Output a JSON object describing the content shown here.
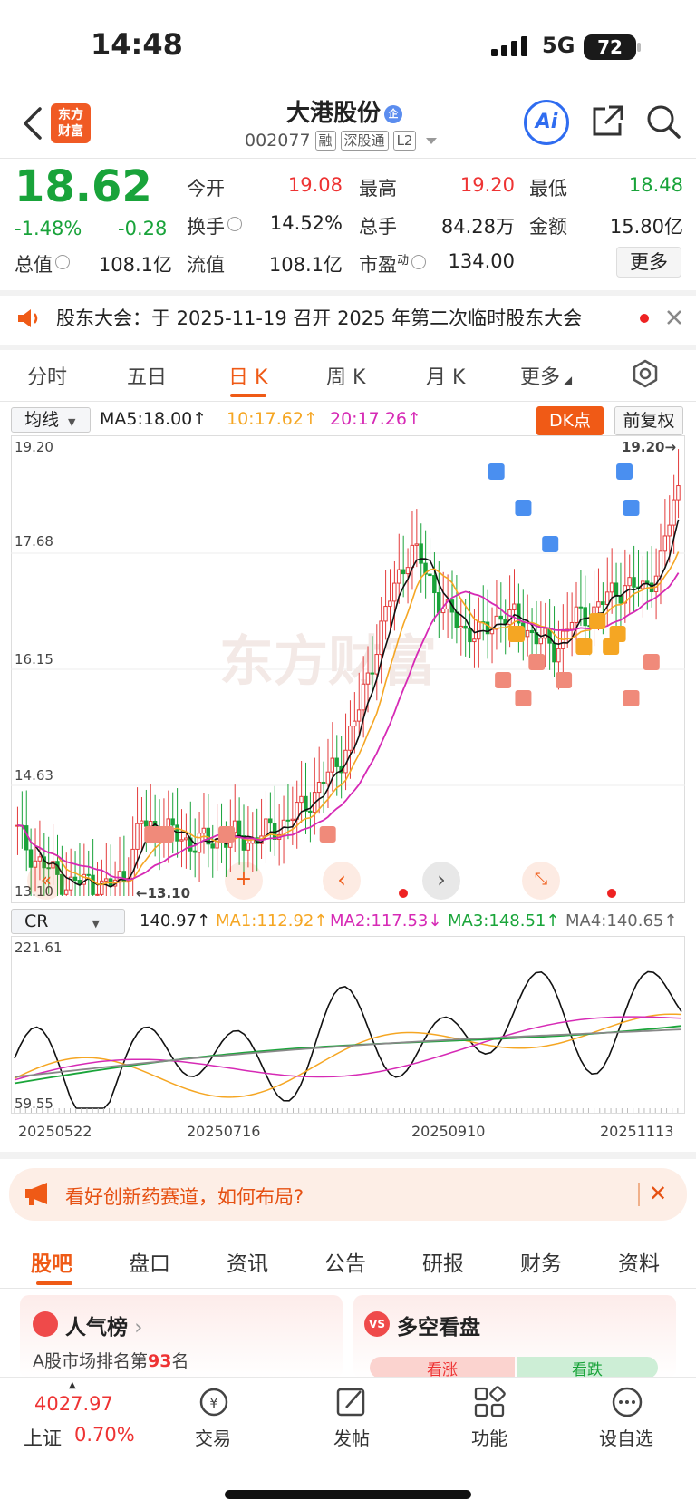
{
  "status": {
    "time": "14:48",
    "network": "5G",
    "battery": "72"
  },
  "header": {
    "logo_line1": "东方",
    "logo_line2": "财富",
    "name": "大港股份",
    "name_badge": "企",
    "code": "002077",
    "tags": [
      "融",
      "深股通",
      "L2"
    ],
    "ai_label": "Ai"
  },
  "quote": {
    "price": "18.62",
    "pct": "-1.48%",
    "chg": "-0.28",
    "open_label": "今开",
    "open": "19.08",
    "high_label": "最高",
    "high": "19.20",
    "low_label": "最低",
    "low": "18.48",
    "turnover_label": "换手",
    "turnover": "14.52%",
    "volume_label": "总手",
    "volume": "84.28万",
    "amount_label": "金额",
    "amount": "15.80亿",
    "mcap_label": "总值",
    "mcap": "108.1亿",
    "float_label": "流值",
    "float": "108.1亿",
    "pe_label": "市盈",
    "pe_sup": "动",
    "pe": "134.00",
    "more": "更多"
  },
  "notice": {
    "text": "股东大会：于 2025-11-19 召开 2025 年第二次临时股东大会"
  },
  "chart_tabs": [
    "分时",
    "五日",
    "日 K",
    "周 K",
    "月 K",
    "更多"
  ],
  "ma_bar": {
    "select": "均线",
    "ma5": "MA5:18.00",
    "ma10": "10:17.62",
    "ma20": "20:17.26",
    "dk": "DK点",
    "fq": "前复权"
  },
  "kline_axis": [
    "19.20",
    "17.68",
    "16.15",
    "14.63",
    "13.10"
  ],
  "kline_marks": {
    "high": "19.20",
    "low": "13.10"
  },
  "cr_bar": {
    "select": "CR",
    "cr": "140.97",
    "ma1": "MA1:112.92",
    "ma2": "MA2:117.53",
    "ma3": "MA3:148.51",
    "ma4": "MA4:140.65"
  },
  "cr_axis": [
    "221.61",
    "59.55"
  ],
  "dates": [
    "20250522",
    "20250716",
    "20250910",
    "20251113"
  ],
  "colors": {
    "up": "#e33b3b",
    "down": "#19a33a",
    "accent": "#ef5a16"
  },
  "banner": {
    "text": "看好创新药赛道，如何布局?"
  },
  "bottom_tabs": [
    "股吧",
    "盘口",
    "资讯",
    "公告",
    "研报",
    "财务",
    "资料"
  ],
  "cards": {
    "popular_title": "人气榜",
    "popular_sub_prefix": "A股市场排名第",
    "popular_rank": "93",
    "popular_sub_suffix": "名",
    "bull_title": "多空看盘",
    "bull_up": "看涨",
    "bull_down": "看跌"
  },
  "tabbar": {
    "index_value": "4027.97",
    "index_name": "上证",
    "index_pct": "0.70%",
    "items": [
      "交易",
      "发帖",
      "功能",
      "设自选"
    ]
  },
  "chart_data": {
    "type": "candlestick",
    "ylim": [
      13.1,
      19.2
    ],
    "x_labels": [
      "20250522",
      "20250716",
      "20250910",
      "20251113"
    ],
    "last_close": 18.62,
    "ma": {
      "MA5": 18.0,
      "MA10": 17.62,
      "MA20": 17.26
    },
    "indicator": {
      "name": "CR",
      "ylim": [
        59.55,
        221.61
      ],
      "CR": 140.97,
      "MA1": 112.92,
      "MA2": 117.53,
      "MA3": 148.51,
      "MA4": 140.65
    }
  }
}
